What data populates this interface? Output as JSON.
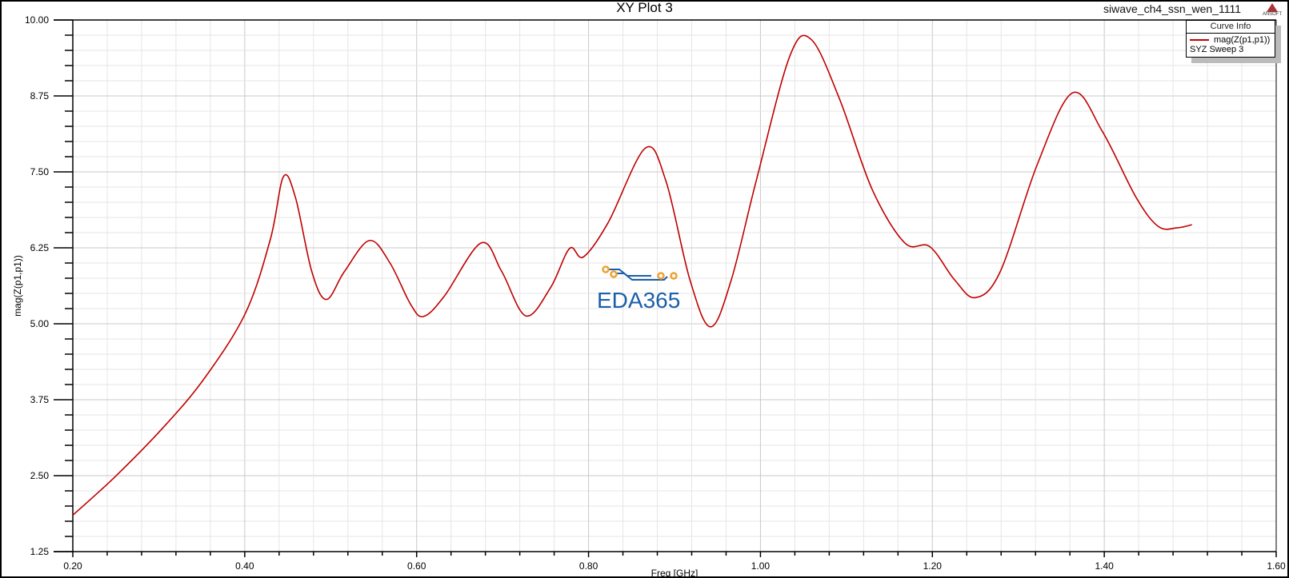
{
  "header": {
    "title": "XY Plot 3",
    "project": "siwave_ch4_ssn_wen_1111",
    "logo": "ANSOFT"
  },
  "legend": {
    "header": "Curve Info",
    "series_label": "mag(Z(p1,p1))",
    "sweep": "SYZ Sweep 3"
  },
  "watermark": "EDA365",
  "colors": {
    "curve": "#c00000",
    "watermark_blue": "#1b5fab",
    "watermark_orange": "#f0a030"
  },
  "chart_data": {
    "type": "line",
    "title": "XY Plot 3",
    "xlabel": "Freq [GHz]",
    "ylabel": "mag(Z(p1,p1))",
    "xlim": [
      0.2,
      1.6
    ],
    "ylim": [
      1.25,
      10.0
    ],
    "x_ticks": [
      "0.20",
      "0.40",
      "0.60",
      "0.80",
      "1.00",
      "1.20",
      "1.40",
      "1.60"
    ],
    "y_ticks": [
      "1.25",
      "2.50",
      "3.75",
      "5.00",
      "6.25",
      "7.50",
      "8.75",
      "10.00"
    ],
    "grid": true,
    "legend_position": "top-right",
    "series": [
      {
        "name": "mag(Z(p1,p1))",
        "x": [
          0.2,
          0.249,
          0.305,
          0.353,
          0.401,
          0.43,
          0.445,
          0.459,
          0.478,
          0.495,
          0.516,
          0.545,
          0.569,
          0.593,
          0.608,
          0.632,
          0.675,
          0.699,
          0.727,
          0.756,
          0.778,
          0.794,
          0.823,
          0.866,
          0.89,
          0.918,
          0.942,
          0.966,
          0.995,
          1.034,
          1.059,
          1.092,
          1.13,
          1.168,
          1.197,
          1.226,
          1.25,
          1.279,
          1.322,
          1.363,
          1.398,
          1.437,
          1.463,
          1.485,
          1.502
        ],
        "y": [
          1.85,
          2.48,
          3.29,
          4.1,
          5.18,
          6.4,
          7.42,
          7.08,
          5.86,
          5.4,
          5.86,
          6.37,
          6.0,
          5.32,
          5.12,
          5.45,
          6.33,
          5.86,
          5.13,
          5.6,
          6.24,
          6.1,
          6.67,
          7.89,
          7.35,
          5.72,
          4.95,
          5.72,
          7.35,
          9.4,
          9.68,
          8.7,
          7.21,
          6.33,
          6.27,
          5.72,
          5.43,
          5.86,
          7.62,
          8.8,
          8.16,
          7.08,
          6.6,
          6.58,
          6.63
        ]
      }
    ]
  }
}
